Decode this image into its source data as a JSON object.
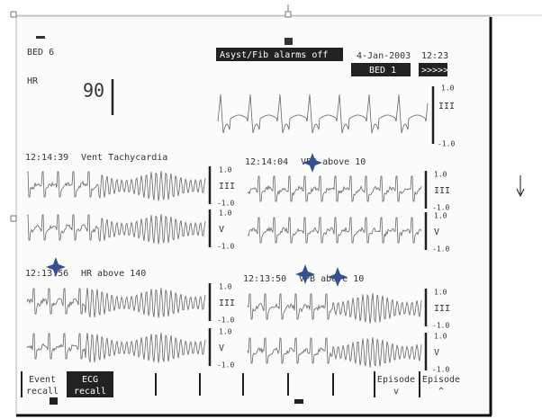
{
  "header": {
    "bed": "BED 6",
    "alarm": "Asyst/Fib alarms off",
    "date": "4-Jan-2003",
    "time": "12:23",
    "bed_selector": "BED 1",
    "next": ">>>>>"
  },
  "hr": {
    "label": "HR",
    "value": 90
  },
  "live_wave": {
    "lead": "III",
    "scale_top": "1.0",
    "scale_bottom": "-1.0"
  },
  "episodes": [
    {
      "time": "12:14:39",
      "event": "Vent Tachycardia",
      "leads": [
        {
          "name": "III",
          "top": "1.0",
          "bottom": "-1.0"
        },
        {
          "name": "V",
          "top": "1.0",
          "bottom": "-1.0"
        }
      ]
    },
    {
      "time": "12:14:04",
      "event": "VPB above 10",
      "leads": [
        {
          "name": "III",
          "top": "1.0",
          "bottom": "-1.0"
        },
        {
          "name": "V",
          "top": "1.0",
          "bottom": "-1.0"
        }
      ]
    },
    {
      "time": "12:13:56",
      "event": "HR above 140",
      "leads": [
        {
          "name": "III",
          "top": "1.0",
          "bottom": "-1.0"
        },
        {
          "name": "V",
          "top": "1.0",
          "bottom": "-1.0"
        }
      ]
    },
    {
      "time": "12:13:50",
      "event": "VPB above 10",
      "leads": [
        {
          "name": "III",
          "top": "1.0",
          "bottom": "-1.0"
        },
        {
          "name": "V",
          "top": "1.0",
          "bottom": "-1.0"
        }
      ]
    }
  ],
  "buttons": [
    [
      "Event",
      "recall"
    ],
    [
      "ECG",
      "recall"
    ],
    [
      "Episode",
      "v"
    ],
    [
      "Episode",
      "^"
    ]
  ]
}
